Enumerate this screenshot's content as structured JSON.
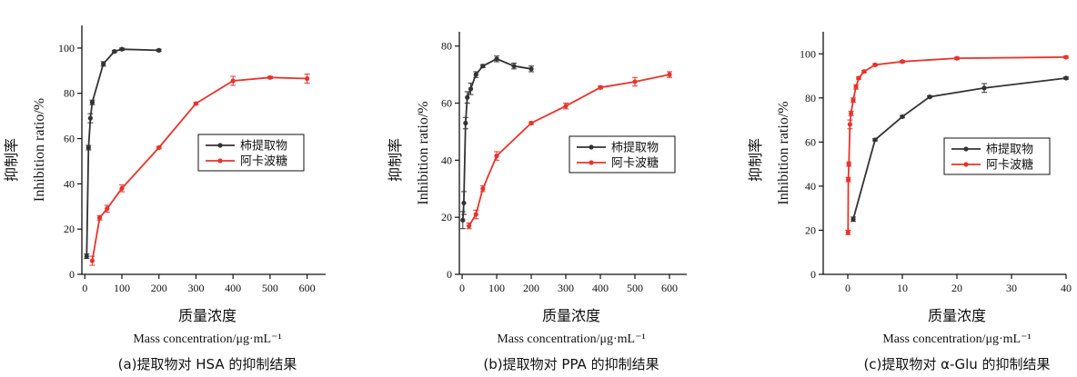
{
  "chart_data": [
    {
      "type": "line",
      "ylabel_cn": "抑制率",
      "ylabel_en": "Inhibition ratio/%",
      "xlabel_cn": "质量浓度",
      "xlabel_en": "Mass concentration/μg·mL⁻¹",
      "caption": "(a)提取物对 HSA 的抑制结果",
      "xlim": [
        -8,
        650
      ],
      "ylim": [
        0,
        110
      ],
      "xticks": [
        0,
        100,
        200,
        300,
        400,
        500,
        600
      ],
      "yticks": [
        0,
        20,
        40,
        60,
        80,
        100
      ],
      "legend_position": "center-right",
      "series": [
        {
          "name": "柿提取物",
          "color": "#333333",
          "x": [
            5,
            10,
            15,
            20,
            50,
            80,
            100,
            200
          ],
          "y": [
            8,
            56,
            69,
            76,
            93,
            98.5,
            99.5,
            99
          ],
          "err": [
            1,
            1,
            2,
            1,
            1,
            0.5,
            0.5,
            0.5
          ]
        },
        {
          "name": "阿卡波糖",
          "color": "#e8332b",
          "x": [
            20,
            40,
            60,
            100,
            200,
            300,
            400,
            500,
            600
          ],
          "y": [
            6,
            25,
            29,
            38,
            56,
            75.5,
            85.5,
            87,
            86.5
          ],
          "err": [
            2,
            1,
            1.5,
            1.5,
            0.5,
            0.5,
            2,
            0.5,
            2
          ]
        }
      ]
    },
    {
      "type": "line",
      "ylabel_cn": "抑制率",
      "ylabel_en": "Inhibition ratio/%",
      "xlabel_cn": "质量浓度",
      "xlabel_en": "Mass concentration/μg·mL⁻¹",
      "caption": "(b)提取物对 PPA 的抑制结果",
      "xlim": [
        -8,
        650
      ],
      "ylim": [
        0,
        85
      ],
      "xticks": [
        0,
        100,
        200,
        300,
        400,
        500,
        600
      ],
      "yticks": [
        0,
        20,
        40,
        60,
        80
      ],
      "legend_position": "center-right",
      "series": [
        {
          "name": "柿提取物",
          "color": "#333333",
          "x": [
            2,
            5,
            10,
            15,
            25,
            40,
            60,
            100,
            150,
            200
          ],
          "y": [
            19,
            25,
            53,
            62,
            65,
            70,
            73,
            75.5,
            73,
            72
          ],
          "err": [
            3,
            4,
            2,
            2,
            2,
            1,
            0.5,
            1,
            1,
            1
          ]
        },
        {
          "name": "阿卡波糖",
          "color": "#e8332b",
          "x": [
            20,
            40,
            60,
            100,
            200,
            300,
            400,
            500,
            600
          ],
          "y": [
            17,
            21,
            30,
            41.5,
            53,
            59,
            65.5,
            67.5,
            70
          ],
          "err": [
            1,
            1.5,
            1,
            1.5,
            0.5,
            1,
            0.5,
            1.5,
            1
          ]
        }
      ]
    },
    {
      "type": "line",
      "ylabel_cn": "抑制率",
      "ylabel_en": "Inhibition ratio/%",
      "xlabel_cn": "质量浓度",
      "xlabel_en": "Mass concentration/μg·mL⁻¹",
      "caption": "(c)提取物对 α-Glu 的抑制结果",
      "xlim": [
        -4.5,
        40
      ],
      "ylim": [
        0,
        110
      ],
      "xticks": [
        0,
        10,
        20,
        30,
        40
      ],
      "yticks": [
        0,
        20,
        40,
        60,
        80,
        100
      ],
      "legend_position": "center-right",
      "series": [
        {
          "name": "柿提取物",
          "color": "#333333",
          "x": [
            1,
            5,
            10,
            15,
            25,
            40
          ],
          "y": [
            25,
            61,
            71.5,
            80.5,
            84.5,
            89
          ],
          "err": [
            1,
            0.5,
            0.5,
            0.5,
            2,
            0.5
          ]
        },
        {
          "name": "阿卡波糖",
          "color": "#e8332b",
          "x": [
            0.05,
            0.1,
            0.2,
            0.4,
            0.6,
            1,
            1.5,
            2,
            3,
            5,
            10,
            20,
            40
          ],
          "y": [
            19,
            43,
            50,
            68,
            73,
            79,
            85,
            89,
            92,
            95,
            96.5,
            98,
            98.5
          ],
          "err": [
            1,
            1,
            1,
            2,
            1,
            1,
            1,
            0.5,
            0.5,
            0.5,
            0.5,
            0.5,
            0.5
          ]
        }
      ]
    }
  ]
}
